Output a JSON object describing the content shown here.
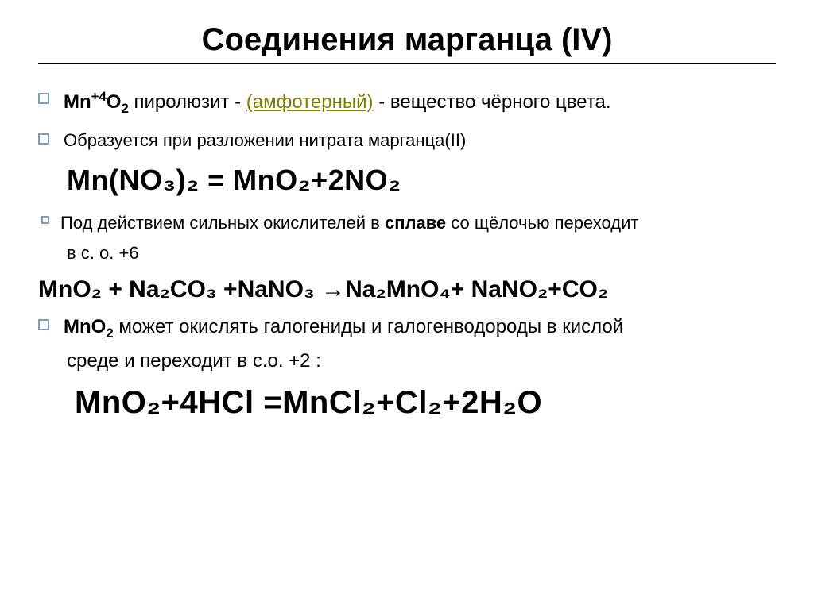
{
  "title": "Соединения марганца (IV)",
  "lines": {
    "l1_prefix": "Mn",
    "l1_sup": "+4",
    "l1_o2": "O",
    "l1_o2sub": "2",
    "l1_pyro": "  пиролюзит - ",
    "l1_amph": "(амфотерный)",
    "l1_rest": " - вещество чёрного цвета.",
    "l2": "Образуется при разложении нитрата  марганца(II)",
    "eq1": "Mn(NO₃)₂ = MnO₂+2NO₂",
    "l3a": "Под действием сильных окислителей в ",
    "l3b": "сплаве",
    "l3c": " со щёлочью переходит",
    "l3d": "в с. о. +6",
    "eq2": "MnO₂ + Na₂CO₃ +NaNO₃ →Na₂MnO₄+ NaNO₂+CO₂",
    "l4a": "MnO",
    "l4a_sub": "2",
    "l4b": " может окислять галогениды и галогенводороды в кислой",
    "l4c": "среде и переходит в с.о. +2 :",
    "eq3": "MnO₂+4HCl =MnCl₂+Cl₂+2H₂O"
  },
  "colors": {
    "olive": "#7f7f00",
    "bullet_border": "#7f9db9",
    "text": "#000000",
    "bg": "#ffffff"
  }
}
